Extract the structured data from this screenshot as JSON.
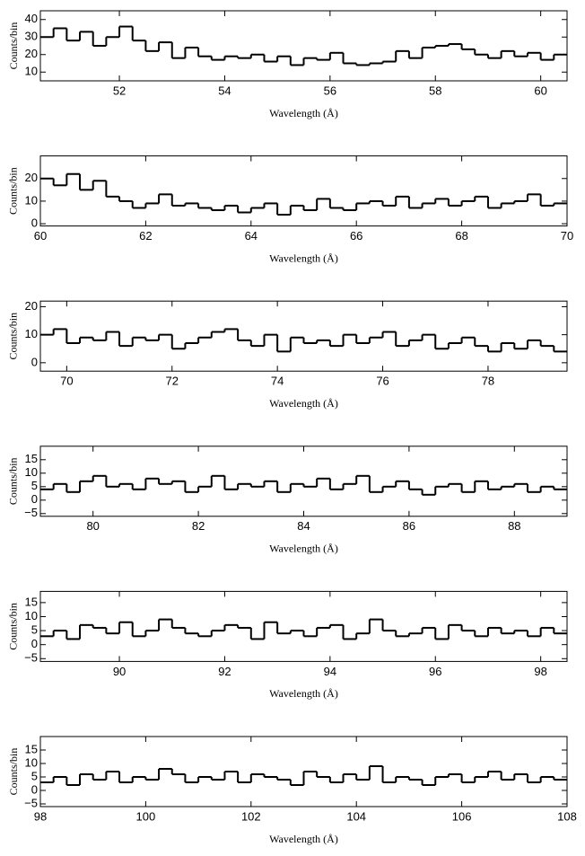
{
  "chart_data": [
    {
      "type": "histogram",
      "xlabel": "Wavelength (Å)",
      "ylabel": "Counts/bin",
      "color": "#000000",
      "bins": [
        50.5,
        50.75,
        51,
        51.25,
        51.5,
        51.75,
        52,
        52.25,
        52.5,
        52.75,
        53,
        53.25,
        53.5,
        53.75,
        54,
        54.25,
        54.5,
        54.75,
        55,
        55.25,
        55.5,
        55.75,
        56,
        56.25,
        56.5,
        56.75,
        57,
        57.25,
        57.5,
        57.75,
        58,
        58.25,
        58.5,
        58.75,
        59,
        59.25,
        59.5,
        59.75,
        60,
        60.25,
        60.5
      ],
      "values": [
        30,
        35,
        28,
        33,
        25,
        30,
        36,
        28,
        22,
        27,
        18,
        24,
        19,
        17,
        19,
        18,
        20,
        16,
        19,
        14,
        18,
        17,
        21,
        15,
        14,
        15,
        16,
        22,
        18,
        24,
        25,
        26,
        23,
        20,
        18,
        22,
        19,
        21,
        17,
        20
      ],
      "xlim": [
        50.5,
        60.5
      ],
      "xticks": [
        52,
        54,
        56,
        58,
        60
      ],
      "ylim": [
        5,
        45
      ],
      "yticks": [
        10,
        20,
        30,
        40
      ]
    },
    {
      "type": "histogram",
      "xlabel": "Wavelength (Å)",
      "ylabel": "Counts/bin",
      "color": "#000000",
      "bins": [
        60,
        60.25,
        60.5,
        60.75,
        61,
        61.25,
        61.5,
        61.75,
        62,
        62.25,
        62.5,
        62.75,
        63,
        63.25,
        63.5,
        63.75,
        64,
        64.25,
        64.5,
        64.75,
        65,
        65.25,
        65.5,
        65.75,
        66,
        66.25,
        66.5,
        66.75,
        67,
        67.25,
        67.5,
        67.75,
        68,
        68.25,
        68.5,
        68.75,
        69,
        69.25,
        69.5,
        69.75,
        70
      ],
      "values": [
        20,
        17,
        22,
        15,
        19,
        12,
        10,
        7,
        9,
        13,
        8,
        9,
        7,
        6,
        8,
        5,
        7,
        9,
        4,
        8,
        6,
        11,
        7,
        6,
        9,
        10,
        8,
        12,
        7,
        9,
        11,
        8,
        10,
        12,
        7,
        9,
        10,
        13,
        8,
        9
      ],
      "xlim": [
        60,
        70
      ],
      "xticks": [
        60,
        62,
        64,
        66,
        68,
        70
      ],
      "ylim": [
        -1,
        30
      ],
      "yticks": [
        0,
        10,
        20
      ]
    },
    {
      "type": "histogram",
      "xlabel": "Wavelength (Å)",
      "ylabel": "Counts/bin",
      "color": "#000000",
      "bins": [
        69.5,
        69.75,
        70,
        70.25,
        70.5,
        70.75,
        71,
        71.25,
        71.5,
        71.75,
        72,
        72.25,
        72.5,
        72.75,
        73,
        73.25,
        73.5,
        73.75,
        74,
        74.25,
        74.5,
        74.75,
        75,
        75.25,
        75.5,
        75.75,
        76,
        76.25,
        76.5,
        76.75,
        77,
        77.25,
        77.5,
        77.75,
        78,
        78.25,
        78.5,
        78.75,
        79,
        79.25,
        79.5
      ],
      "values": [
        10,
        12,
        7,
        9,
        8,
        11,
        6,
        9,
        8,
        10,
        5,
        7,
        9,
        11,
        12,
        8,
        6,
        10,
        4,
        9,
        7,
        8,
        6,
        10,
        7,
        9,
        11,
        6,
        8,
        10,
        5,
        7,
        9,
        6,
        4,
        7,
        5,
        8,
        6,
        4
      ],
      "xlim": [
        69.5,
        79.5
      ],
      "xticks": [
        70,
        72,
        74,
        76,
        78
      ],
      "ylim": [
        -3,
        22
      ],
      "yticks": [
        0,
        10,
        20
      ]
    },
    {
      "type": "histogram",
      "xlabel": "Wavelength (Å)",
      "ylabel": "Counts/bin",
      "color": "#000000",
      "bins": [
        79,
        79.25,
        79.5,
        79.75,
        80,
        80.25,
        80.5,
        80.75,
        81,
        81.25,
        81.5,
        81.75,
        82,
        82.25,
        82.5,
        82.75,
        83,
        83.25,
        83.5,
        83.75,
        84,
        84.25,
        84.5,
        84.75,
        85,
        85.25,
        85.5,
        85.75,
        86,
        86.25,
        86.5,
        86.75,
        87,
        87.25,
        87.5,
        87.75,
        88,
        88.25,
        88.5,
        88.75,
        89
      ],
      "values": [
        4,
        6,
        3,
        7,
        9,
        5,
        6,
        4,
        8,
        6,
        7,
        3,
        5,
        9,
        4,
        6,
        5,
        7,
        3,
        6,
        5,
        8,
        4,
        6,
        9,
        3,
        5,
        7,
        4,
        2,
        5,
        6,
        3,
        7,
        4,
        5,
        6,
        3,
        5,
        4
      ],
      "xlim": [
        79,
        89
      ],
      "xticks": [
        80,
        82,
        84,
        86,
        88
      ],
      "ylim": [
        -6,
        20
      ],
      "yticks": [
        {
          "value": -5,
          "label": "−5"
        },
        0,
        5,
        10,
        15
      ]
    },
    {
      "type": "histogram",
      "xlabel": "Wavelength (Å)",
      "ylabel": "Counts/bin",
      "color": "#000000",
      "bins": [
        88.5,
        88.75,
        89,
        89.25,
        89.5,
        89.75,
        90,
        90.25,
        90.5,
        90.75,
        91,
        91.25,
        91.5,
        91.75,
        92,
        92.25,
        92.5,
        92.75,
        93,
        93.25,
        93.5,
        93.75,
        94,
        94.25,
        94.5,
        94.75,
        95,
        95.25,
        95.5,
        95.75,
        96,
        96.25,
        96.5,
        96.75,
        97,
        97.25,
        97.5,
        97.75,
        98,
        98.25,
        98.5
      ],
      "values": [
        3,
        5,
        2,
        7,
        6,
        4,
        8,
        3,
        5,
        9,
        6,
        4,
        3,
        5,
        7,
        6,
        2,
        8,
        4,
        5,
        3,
        6,
        7,
        2,
        4,
        9,
        5,
        3,
        4,
        6,
        2,
        7,
        5,
        3,
        6,
        4,
        5,
        3,
        6,
        4
      ],
      "xlim": [
        88.5,
        98.5
      ],
      "xticks": [
        90,
        92,
        94,
        96,
        98
      ],
      "ylim": [
        -6,
        19
      ],
      "yticks": [
        {
          "value": -5,
          "label": "−5"
        },
        0,
        5,
        10,
        15
      ]
    },
    {
      "type": "histogram",
      "xlabel": "Wavelength (Å)",
      "ylabel": "Counts/bin",
      "color": "#000000",
      "bins": [
        98,
        98.25,
        98.5,
        98.75,
        99,
        99.25,
        99.5,
        99.75,
        100,
        100.25,
        100.5,
        100.75,
        101,
        101.25,
        101.5,
        101.75,
        102,
        102.25,
        102.5,
        102.75,
        103,
        103.25,
        103.5,
        103.75,
        104,
        104.25,
        104.5,
        104.75,
        105,
        105.25,
        105.5,
        105.75,
        106,
        106.25,
        106.5,
        106.75,
        107,
        107.25,
        107.5,
        107.75,
        108
      ],
      "values": [
        3,
        5,
        2,
        6,
        4,
        7,
        3,
        5,
        4,
        8,
        6,
        3,
        5,
        4,
        7,
        3,
        6,
        5,
        4,
        2,
        7,
        5,
        3,
        6,
        4,
        9,
        3,
        5,
        4,
        2,
        5,
        6,
        3,
        5,
        7,
        4,
        6,
        3,
        5,
        4
      ],
      "xlim": [
        98,
        108
      ],
      "xticks": [
        98,
        100,
        102,
        104,
        106,
        108
      ],
      "ylim": [
        -6,
        20
      ],
      "yticks": [
        {
          "value": -5,
          "label": "−5"
        },
        0,
        5,
        10,
        15
      ]
    }
  ]
}
